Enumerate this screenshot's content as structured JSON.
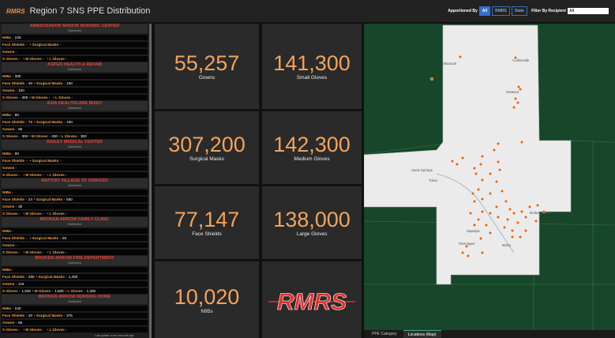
{
  "header": {
    "logo": "RMRS",
    "title": "Region 7 SNS PPE Distribution",
    "apportioned_label": "Apportioned By",
    "apportioned_options": [
      "All",
      "RMRS",
      "State"
    ],
    "filter_label": "Filter By Recipient",
    "filter_value": "All"
  },
  "list": {
    "labels": {
      "n95s": "N95s -",
      "face_shields": "Face Shields -",
      "surgical_masks": "• Surgical Masks -",
      "gowns": "Gowns -",
      "s_gloves": "S Gloves -",
      "m_gloves": "• M Gloves -",
      "l_gloves": "• L Gloves -"
    },
    "items": [
      {
        "name": "AMBASSADOR MANOR NURSING CENTER",
        "status": "Distributed",
        "n95s": "240",
        "face_shields": "",
        "surgical_masks": "",
        "gowns": "",
        "s_gloves": "",
        "m_gloves": "",
        "l_gloves": ""
      },
      {
        "name": "ASPEN HEALTH & REHAB",
        "status": "Distributed",
        "n95s": "300",
        "face_shields": "40",
        "surgical_masks": "100",
        "gowns": "100",
        "s_gloves": "300",
        "m_gloves": "",
        "l_gloves": ""
      },
      {
        "name": "AXIA HEALTHCARE BIXBY",
        "status": "Distributed",
        "n95s": "90",
        "face_shields": "72",
        "surgical_masks": "100",
        "gowns": "66",
        "s_gloves": "300",
        "m_gloves": "400",
        "l_gloves": "300"
      },
      {
        "name": "BAILEY MEDICAL CENTER",
        "status": "Distributed",
        "n95s": "60",
        "face_shields": "",
        "surgical_masks": "",
        "gowns": "",
        "s_gloves": "",
        "m_gloves": "",
        "l_gloves": ""
      },
      {
        "name": "BAPTIST VILLAGE OF OWASSO",
        "status": "Distributed",
        "n95s": "",
        "face_shields": "24",
        "surgical_masks": "550",
        "gowns": "30",
        "s_gloves": "",
        "m_gloves": "",
        "l_gloves": ""
      },
      {
        "name": "BROKEN ARROW FAMILY CLINIC",
        "status": "Distributed",
        "n95s": "",
        "face_shields": "",
        "surgical_masks": "50",
        "gowns": "",
        "s_gloves": "",
        "m_gloves": "",
        "l_gloves": ""
      },
      {
        "name": "BROKEN ARROW FIRE DEPARTMENT",
        "status": "Distributed",
        "n95s": "",
        "face_shields": "200",
        "surgical_masks": "1,400",
        "gowns": "116",
        "s_gloves": "1,600",
        "m_gloves": "1,600",
        "l_gloves": "1,200"
      },
      {
        "name": "BROKEN ARROW NURSING HOME",
        "status": "Distributed",
        "n95s": "240",
        "face_shields": "40",
        "surgical_masks": "375",
        "gowns": "66",
        "s_gloves": "",
        "m_gloves": "",
        "l_gloves": ""
      }
    ],
    "footer": "Last update: a few seconds ago"
  },
  "tiles": [
    {
      "value": "55,257",
      "label": "Gowns"
    },
    {
      "value": "141,300",
      "label": "Small Gloves"
    },
    {
      "value": "307,200",
      "label": "Surgical Masks"
    },
    {
      "value": "142,300",
      "label": "Medium Gloves"
    },
    {
      "value": "77,147",
      "label": "Face Shields"
    },
    {
      "value": "138,000",
      "label": "Large Gloves"
    },
    {
      "value": "10,020",
      "label": "N95s"
    },
    {
      "logo": "RMRS"
    }
  ],
  "map": {
    "places": [
      "Skiatook",
      "Collinsville",
      "Owasso",
      "Sand Springs",
      "Tulsa",
      "Broken Arrow",
      "Sapulpa",
      "Bixby",
      "Okmulgee"
    ],
    "tabs": [
      "PPE Category",
      "Locations (Map)"
    ]
  }
}
